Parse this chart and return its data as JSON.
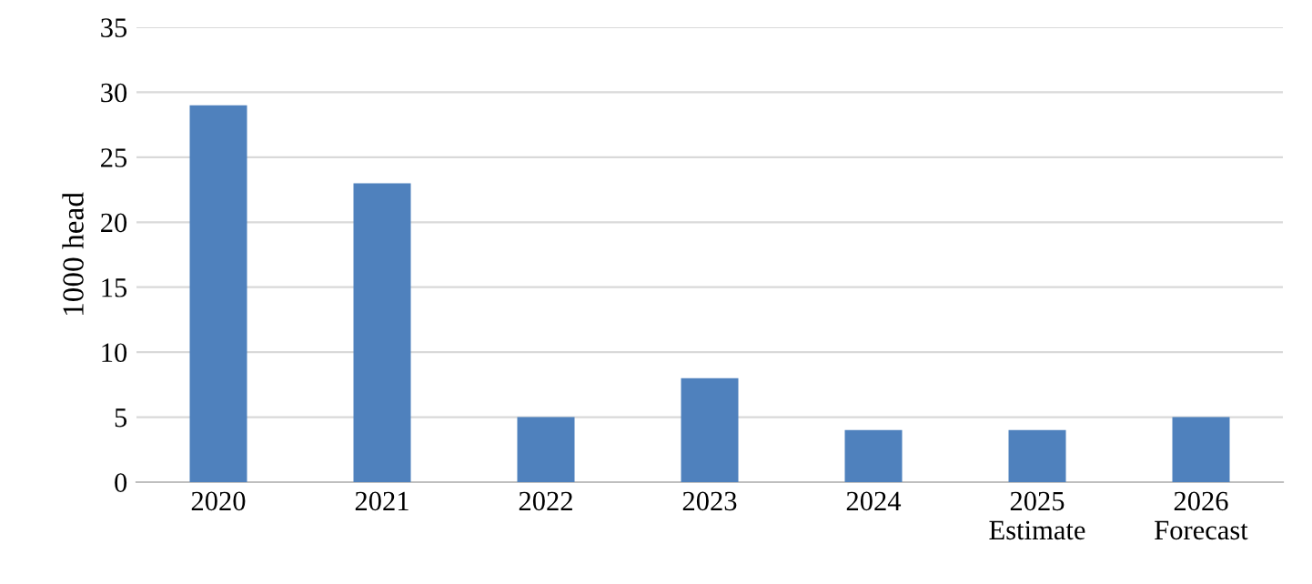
{
  "chart_data": {
    "type": "bar",
    "ylabel": "1000 head",
    "categories": [
      "2020",
      "2021",
      "2022",
      "2023",
      "2024",
      "2025\nEstimate",
      "2026\nForecast"
    ],
    "values": [
      29,
      23,
      5,
      8,
      4,
      4,
      5
    ],
    "color": "#4f81bd",
    "ylim": [
      0,
      35
    ],
    "yticks": [
      0,
      5,
      10,
      15,
      20,
      25,
      30,
      35
    ],
    "grid": "y",
    "legend": false
  }
}
